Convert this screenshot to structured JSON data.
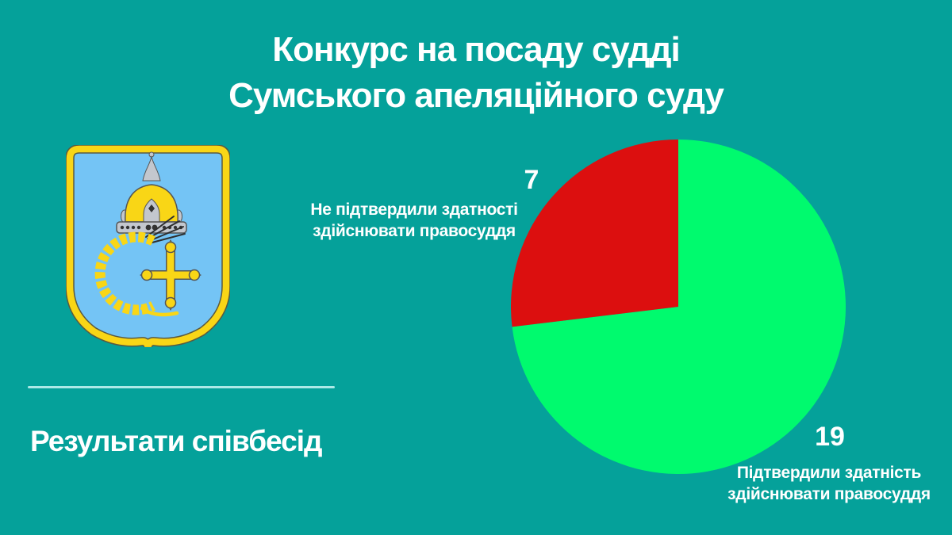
{
  "colors": {
    "background": "#05a19a",
    "text": "#ffffff",
    "divider": "#ade9e7",
    "pie_green": "#00fa6e",
    "pie_red": "#dc0f0f",
    "shield_blue": "#74c4f5",
    "shield_gold": "#f9d616",
    "metal_gray": "#c3c7ce"
  },
  "title": {
    "line1": "Конкурс на посаду судді",
    "line2": "Сумського апеляційного суду"
  },
  "emblem": {
    "icon": "sumy-oblast-coat-of-arms"
  },
  "results_section": {
    "label": "Результати співбесід"
  },
  "chart_data": {
    "type": "pie",
    "title": "Результати співбесід",
    "total": 26,
    "start_angle_deg": -90,
    "direction": "clockwise",
    "legend_position": "callouts",
    "slices": [
      {
        "name": "confirmed",
        "label": "Підтвердили здатність здійснювати правосуддя",
        "value": 19,
        "color": "#00fa6e"
      },
      {
        "name": "not-confirmed",
        "label": "Не підтвердили здатності здійснювати правосуддя",
        "value": 7,
        "color": "#dc0f0f"
      }
    ]
  },
  "callouts": {
    "not_confirmed": {
      "value": "7",
      "line1": "Не підтвердили здатності",
      "line2": "здійснювати правосуддя"
    },
    "confirmed": {
      "value": "19",
      "line1": "Підтвердили здатність",
      "line2": "здійснювати правосуддя"
    }
  }
}
